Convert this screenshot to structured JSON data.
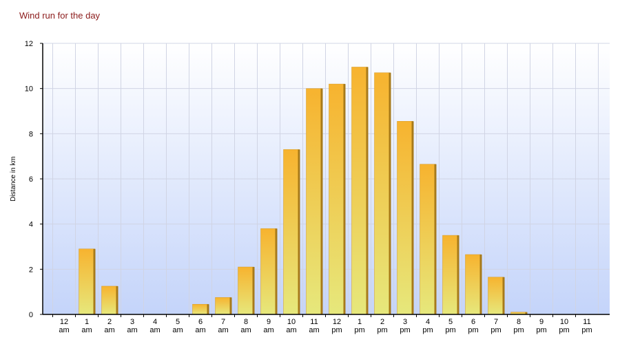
{
  "chart_data": {
    "type": "bar",
    "title": "Wind run for the day",
    "y_label": "Distance in km",
    "categories": [
      "12 am",
      "1 am",
      "2 am",
      "3 am",
      "4 am",
      "5 am",
      "6 am",
      "7 am",
      "8 am",
      "9 am",
      "10 am",
      "11 am",
      "12 pm",
      "1 pm",
      "2 pm",
      "3 pm",
      "4 pm",
      "5 pm",
      "6 pm",
      "7 pm",
      "8 pm",
      "9 pm",
      "10 pm",
      "11 pm"
    ],
    "values": [
      0,
      2.9,
      1.25,
      0,
      0,
      0,
      0.45,
      0.75,
      2.1,
      3.8,
      7.3,
      10.0,
      10.2,
      10.95,
      10.7,
      8.55,
      6.65,
      3.5,
      2.65,
      1.65,
      0.1,
      0,
      0,
      0
    ],
    "color": "#f7b32f",
    "ylim": [
      0,
      12
    ],
    "yticks": [
      0,
      2,
      4,
      6,
      8,
      10,
      12
    ],
    "grid": true
  }
}
